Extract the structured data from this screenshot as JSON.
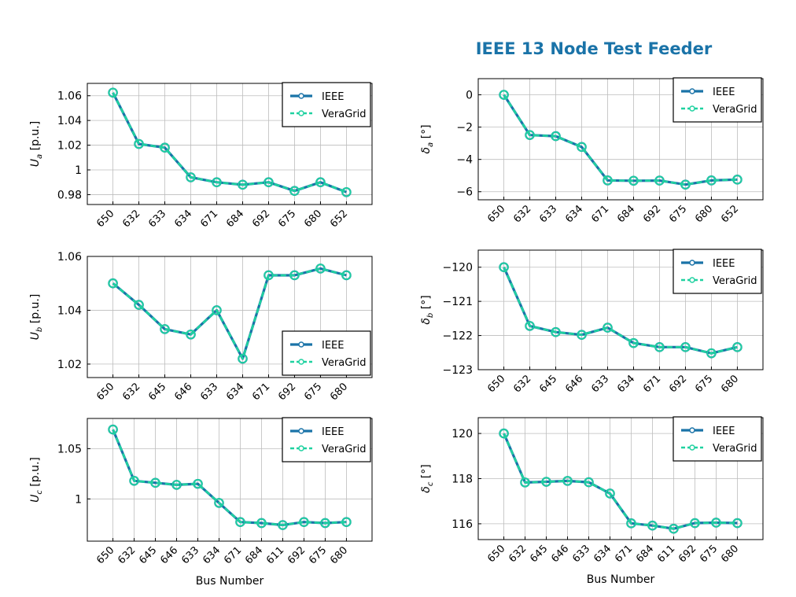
{
  "figure": {
    "title": "IEEE 13 Node Test Feeder",
    "colors": {
      "ieee": "#1a73a8",
      "veragrid": "#1fd1a0",
      "grid": "#bdbdbd"
    }
  },
  "chart_data": [
    {
      "id": "Ua",
      "type": "line",
      "title": "",
      "xlabel": "",
      "ylabel": {
        "symbol": "U",
        "sub": "a",
        "unit": "[p.u.]"
      },
      "categories": [
        "650",
        "632",
        "633",
        "634",
        "671",
        "684",
        "692",
        "675",
        "680",
        "652"
      ],
      "series": [
        {
          "name": "IEEE",
          "values": [
            1.0625,
            1.021,
            1.018,
            0.994,
            0.99,
            0.988,
            0.99,
            0.983,
            0.99,
            0.982
          ]
        },
        {
          "name": "VeraGrid",
          "values": [
            1.0625,
            1.021,
            1.018,
            0.994,
            0.99,
            0.988,
            0.99,
            0.983,
            0.99,
            0.982
          ]
        }
      ],
      "ylim": [
        0.972,
        1.07
      ],
      "yticks": [
        0.98,
        1.0,
        1.02,
        1.04,
        1.06
      ],
      "yticklabels": [
        "0.98",
        "1",
        "1.02",
        "1.04",
        "1.06"
      ],
      "legend": "top-right"
    },
    {
      "id": "Ub",
      "type": "line",
      "title": "",
      "xlabel": "",
      "ylabel": {
        "symbol": "U",
        "sub": "b",
        "unit": "[p.u.]"
      },
      "categories": [
        "650",
        "632",
        "645",
        "646",
        "633",
        "634",
        "671",
        "692",
        "675",
        "680"
      ],
      "series": [
        {
          "name": "IEEE",
          "values": [
            1.05,
            1.042,
            1.033,
            1.031,
            1.04,
            1.022,
            1.053,
            1.053,
            1.0555,
            1.053
          ]
        },
        {
          "name": "VeraGrid",
          "values": [
            1.05,
            1.042,
            1.033,
            1.031,
            1.04,
            1.022,
            1.053,
            1.053,
            1.0555,
            1.053
          ]
        }
      ],
      "ylim": [
        1.015,
        1.06
      ],
      "yticks": [
        1.02,
        1.04,
        1.06
      ],
      "yticklabels": [
        "1.02",
        "1.04",
        "1.06"
      ],
      "legend": "bottom-right"
    },
    {
      "id": "Uc",
      "type": "line",
      "title": "",
      "xlabel": "Bus Number",
      "ylabel": {
        "symbol": "U",
        "sub": "c",
        "unit": "[p.u.]"
      },
      "categories": [
        "650",
        "632",
        "645",
        "646",
        "633",
        "634",
        "671",
        "684",
        "611",
        "692",
        "675",
        "680"
      ],
      "series": [
        {
          "name": "IEEE",
          "values": [
            1.069,
            1.018,
            1.016,
            1.014,
            1.015,
            0.996,
            0.977,
            0.976,
            0.974,
            0.977,
            0.976,
            0.977
          ]
        },
        {
          "name": "VeraGrid",
          "values": [
            1.069,
            1.018,
            1.016,
            1.014,
            1.015,
            0.996,
            0.977,
            0.976,
            0.974,
            0.977,
            0.976,
            0.977
          ]
        }
      ],
      "ylim": [
        0.958,
        1.08
      ],
      "yticks": [
        1.0,
        1.05
      ],
      "yticklabels": [
        "1",
        "1.05"
      ],
      "legend": "top-right"
    },
    {
      "id": "da",
      "type": "line",
      "title": "",
      "xlabel": "",
      "ylabel": {
        "symbol": "δ",
        "sub": "a",
        "unit": "[°]"
      },
      "categories": [
        "650",
        "632",
        "633",
        "634",
        "671",
        "684",
        "692",
        "675",
        "680",
        "652"
      ],
      "series": [
        {
          "name": "IEEE",
          "values": [
            0,
            -2.49,
            -2.56,
            -3.23,
            -5.3,
            -5.32,
            -5.31,
            -5.56,
            -5.3,
            -5.25
          ]
        },
        {
          "name": "VeraGrid",
          "values": [
            0,
            -2.49,
            -2.56,
            -3.23,
            -5.3,
            -5.32,
            -5.31,
            -5.56,
            -5.3,
            -5.25
          ]
        }
      ],
      "ylim": [
        -6.5,
        1.0
      ],
      "yticks": [
        -6,
        -4,
        -2,
        0
      ],
      "yticklabels": [
        "−6",
        "−4",
        "−2",
        "0"
      ],
      "legend": "top-right"
    },
    {
      "id": "db",
      "type": "line",
      "title": "",
      "xlabel": "",
      "ylabel": {
        "symbol": "δ",
        "sub": "b",
        "unit": "[°]"
      },
      "categories": [
        "650",
        "632",
        "645",
        "646",
        "633",
        "634",
        "671",
        "692",
        "675",
        "680"
      ],
      "series": [
        {
          "name": "IEEE",
          "values": [
            -120.0,
            -121.72,
            -121.9,
            -121.98,
            -121.77,
            -122.22,
            -122.34,
            -122.34,
            -122.52,
            -122.34
          ]
        },
        {
          "name": "VeraGrid",
          "values": [
            -120.0,
            -121.72,
            -121.9,
            -121.98,
            -121.77,
            -122.22,
            -122.34,
            -122.34,
            -122.52,
            -122.34
          ]
        }
      ],
      "ylim": [
        -123.0,
        -119.5
      ],
      "yticks": [
        -123,
        -122,
        -121,
        -120
      ],
      "yticklabels": [
        "−123",
        "−122",
        "−121",
        "−120"
      ],
      "legend": "top-right"
    },
    {
      "id": "dc",
      "type": "line",
      "title": "",
      "xlabel": "Bus Number",
      "ylabel": {
        "symbol": "δ",
        "sub": "c",
        "unit": "[°]"
      },
      "categories": [
        "650",
        "632",
        "645",
        "646",
        "633",
        "634",
        "671",
        "684",
        "611",
        "692",
        "675",
        "680"
      ],
      "series": [
        {
          "name": "IEEE",
          "values": [
            120.0,
            117.83,
            117.86,
            117.9,
            117.84,
            117.34,
            116.02,
            115.92,
            115.78,
            116.03,
            116.05,
            116.03
          ]
        },
        {
          "name": "VeraGrid",
          "values": [
            120.0,
            117.83,
            117.86,
            117.9,
            117.84,
            117.34,
            116.02,
            115.92,
            115.78,
            116.03,
            116.05,
            116.03
          ]
        }
      ],
      "ylim": [
        115.3,
        120.7
      ],
      "yticks": [
        116,
        118,
        120
      ],
      "yticklabels": [
        "116",
        "118",
        "120"
      ],
      "legend": "top-right"
    }
  ]
}
